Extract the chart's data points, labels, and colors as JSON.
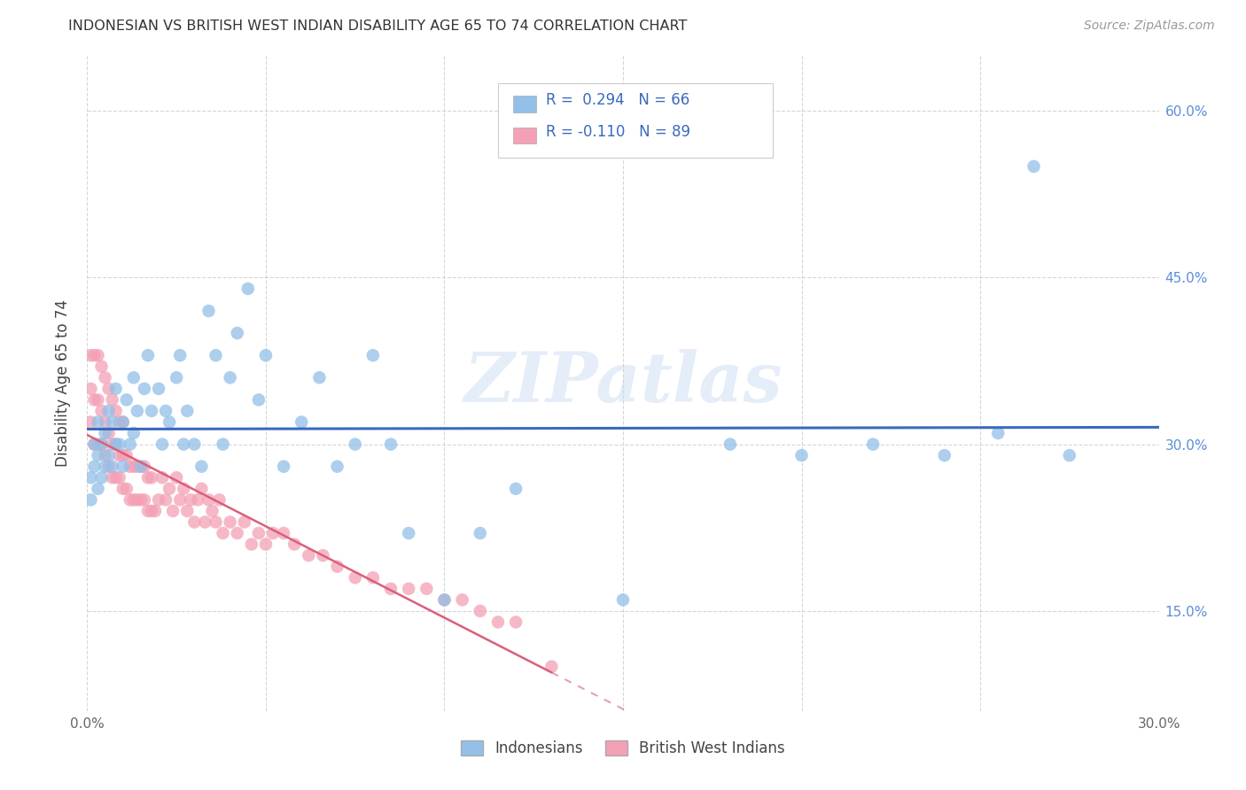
{
  "title": "INDONESIAN VS BRITISH WEST INDIAN DISABILITY AGE 65 TO 74 CORRELATION CHART",
  "source": "Source: ZipAtlas.com",
  "ylabel": "Disability Age 65 to 74",
  "watermark": "ZIPatlas",
  "xlim": [
    0.0,
    0.3
  ],
  "ylim": [
    0.06,
    0.65
  ],
  "xtick_positions": [
    0.0,
    0.05,
    0.1,
    0.15,
    0.2,
    0.25,
    0.3
  ],
  "xtick_labels": [
    "0.0%",
    "",
    "",
    "",
    "",
    "",
    "30.0%"
  ],
  "ytick_positions": [
    0.15,
    0.3,
    0.45,
    0.6
  ],
  "ytick_labels": [
    "15.0%",
    "30.0%",
    "45.0%",
    "60.0%"
  ],
  "indonesian_color": "#92c0e8",
  "bwi_color": "#f4a0b5",
  "line_blue": "#3a6abf",
  "line_pink": "#d9607a",
  "legend_label1": "Indonesians",
  "legend_label2": "British West Indians",
  "indonesian_x": [
    0.001,
    0.001,
    0.002,
    0.002,
    0.003,
    0.003,
    0.003,
    0.004,
    0.004,
    0.005,
    0.005,
    0.006,
    0.006,
    0.007,
    0.007,
    0.008,
    0.008,
    0.009,
    0.01,
    0.01,
    0.011,
    0.012,
    0.013,
    0.013,
    0.014,
    0.015,
    0.016,
    0.017,
    0.018,
    0.02,
    0.021,
    0.022,
    0.023,
    0.025,
    0.026,
    0.027,
    0.028,
    0.03,
    0.032,
    0.034,
    0.036,
    0.038,
    0.04,
    0.042,
    0.045,
    0.048,
    0.05,
    0.055,
    0.06,
    0.065,
    0.07,
    0.075,
    0.08,
    0.085,
    0.09,
    0.1,
    0.11,
    0.12,
    0.15,
    0.18,
    0.2,
    0.22,
    0.24,
    0.255,
    0.265,
    0.275
  ],
  "indonesian_y": [
    0.27,
    0.25,
    0.28,
    0.3,
    0.26,
    0.29,
    0.32,
    0.27,
    0.3,
    0.28,
    0.31,
    0.29,
    0.33,
    0.28,
    0.32,
    0.3,
    0.35,
    0.3,
    0.32,
    0.28,
    0.34,
    0.3,
    0.36,
    0.31,
    0.33,
    0.28,
    0.35,
    0.38,
    0.33,
    0.35,
    0.3,
    0.33,
    0.32,
    0.36,
    0.38,
    0.3,
    0.33,
    0.3,
    0.28,
    0.42,
    0.38,
    0.3,
    0.36,
    0.4,
    0.44,
    0.34,
    0.38,
    0.28,
    0.32,
    0.36,
    0.28,
    0.3,
    0.38,
    0.3,
    0.22,
    0.16,
    0.22,
    0.26,
    0.16,
    0.3,
    0.29,
    0.3,
    0.29,
    0.31,
    0.55,
    0.29
  ],
  "bwi_x": [
    0.001,
    0.001,
    0.001,
    0.002,
    0.002,
    0.002,
    0.003,
    0.003,
    0.003,
    0.004,
    0.004,
    0.004,
    0.005,
    0.005,
    0.005,
    0.006,
    0.006,
    0.006,
    0.007,
    0.007,
    0.007,
    0.008,
    0.008,
    0.008,
    0.009,
    0.009,
    0.009,
    0.01,
    0.01,
    0.01,
    0.011,
    0.011,
    0.012,
    0.012,
    0.013,
    0.013,
    0.014,
    0.014,
    0.015,
    0.015,
    0.016,
    0.016,
    0.017,
    0.017,
    0.018,
    0.018,
    0.019,
    0.02,
    0.021,
    0.022,
    0.023,
    0.024,
    0.025,
    0.026,
    0.027,
    0.028,
    0.029,
    0.03,
    0.031,
    0.032,
    0.033,
    0.034,
    0.035,
    0.036,
    0.037,
    0.038,
    0.04,
    0.042,
    0.044,
    0.046,
    0.048,
    0.05,
    0.052,
    0.055,
    0.058,
    0.062,
    0.066,
    0.07,
    0.075,
    0.08,
    0.085,
    0.09,
    0.095,
    0.1,
    0.105,
    0.11,
    0.115,
    0.12,
    0.13
  ],
  "bwi_y": [
    0.32,
    0.35,
    0.38,
    0.3,
    0.34,
    0.38,
    0.3,
    0.34,
    0.38,
    0.3,
    0.33,
    0.37,
    0.29,
    0.32,
    0.36,
    0.28,
    0.31,
    0.35,
    0.27,
    0.3,
    0.34,
    0.27,
    0.3,
    0.33,
    0.27,
    0.29,
    0.32,
    0.26,
    0.29,
    0.32,
    0.26,
    0.29,
    0.25,
    0.28,
    0.25,
    0.28,
    0.25,
    0.28,
    0.25,
    0.28,
    0.25,
    0.28,
    0.24,
    0.27,
    0.24,
    0.27,
    0.24,
    0.25,
    0.27,
    0.25,
    0.26,
    0.24,
    0.27,
    0.25,
    0.26,
    0.24,
    0.25,
    0.23,
    0.25,
    0.26,
    0.23,
    0.25,
    0.24,
    0.23,
    0.25,
    0.22,
    0.23,
    0.22,
    0.23,
    0.21,
    0.22,
    0.21,
    0.22,
    0.22,
    0.21,
    0.2,
    0.2,
    0.19,
    0.18,
    0.18,
    0.17,
    0.17,
    0.17,
    0.16,
    0.16,
    0.15,
    0.14,
    0.14,
    0.1
  ]
}
